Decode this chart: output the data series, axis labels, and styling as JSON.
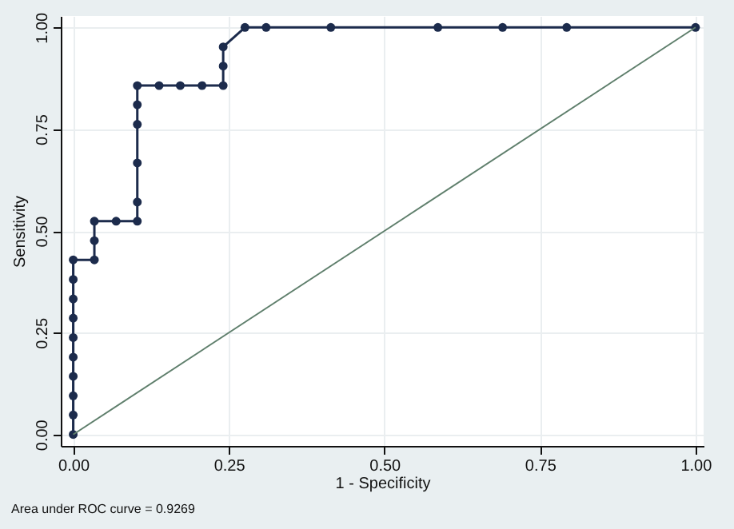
{
  "chart_data": {
    "type": "line",
    "xlabel": "1 - Specificity",
    "ylabel": "Sensitivity",
    "annotations": [
      "Area under ROC curve = 0.9269"
    ],
    "xlim": [
      -0.02,
      1.013
    ],
    "ylim": [
      -0.028,
      1.028
    ],
    "xticks": [
      {
        "value": 0,
        "label": "0.00"
      },
      {
        "value": 0.25,
        "label": "0.25"
      },
      {
        "value": 0.5,
        "label": "0.50"
      },
      {
        "value": 0.75,
        "label": "0.75"
      },
      {
        "value": 1,
        "label": "1.00"
      }
    ],
    "yticks": [
      {
        "value": 0,
        "label": "0.00"
      },
      {
        "value": 0.25,
        "label": "0.25"
      },
      {
        "value": 0.5,
        "label": "0.50"
      },
      {
        "value": 0.75,
        "label": "0.75"
      },
      {
        "value": 1,
        "label": "1.00"
      }
    ],
    "grid": true,
    "marker": "circle",
    "line_style": "solid",
    "series": [
      {
        "color": "#1c2b4c",
        "x": [
          0,
          0,
          0,
          0,
          0,
          0,
          0,
          0,
          0,
          0,
          0.034,
          0.034,
          0.034,
          0.069,
          0.103,
          0.103,
          0.103,
          0.103,
          0.103,
          0.103,
          0.138,
          0.172,
          0.207,
          0.241,
          0.241,
          0.241,
          0.276,
          0.31,
          0.414,
          0.586,
          0.69,
          0.793,
          1
        ],
        "values": [
          0,
          0.048,
          0.095,
          0.143,
          0.19,
          0.238,
          0.286,
          0.333,
          0.381,
          0.429,
          0.429,
          0.476,
          0.524,
          0.524,
          0.524,
          0.571,
          0.667,
          0.762,
          0.81,
          0.857,
          0.857,
          0.857,
          0.857,
          0.857,
          0.905,
          0.952,
          1,
          1,
          1,
          1,
          1,
          1,
          1
        ]
      },
      {
        "color": "#5f7f6c",
        "marker": "none",
        "x": [
          0,
          1
        ],
        "values": [
          0,
          1
        ]
      }
    ]
  }
}
